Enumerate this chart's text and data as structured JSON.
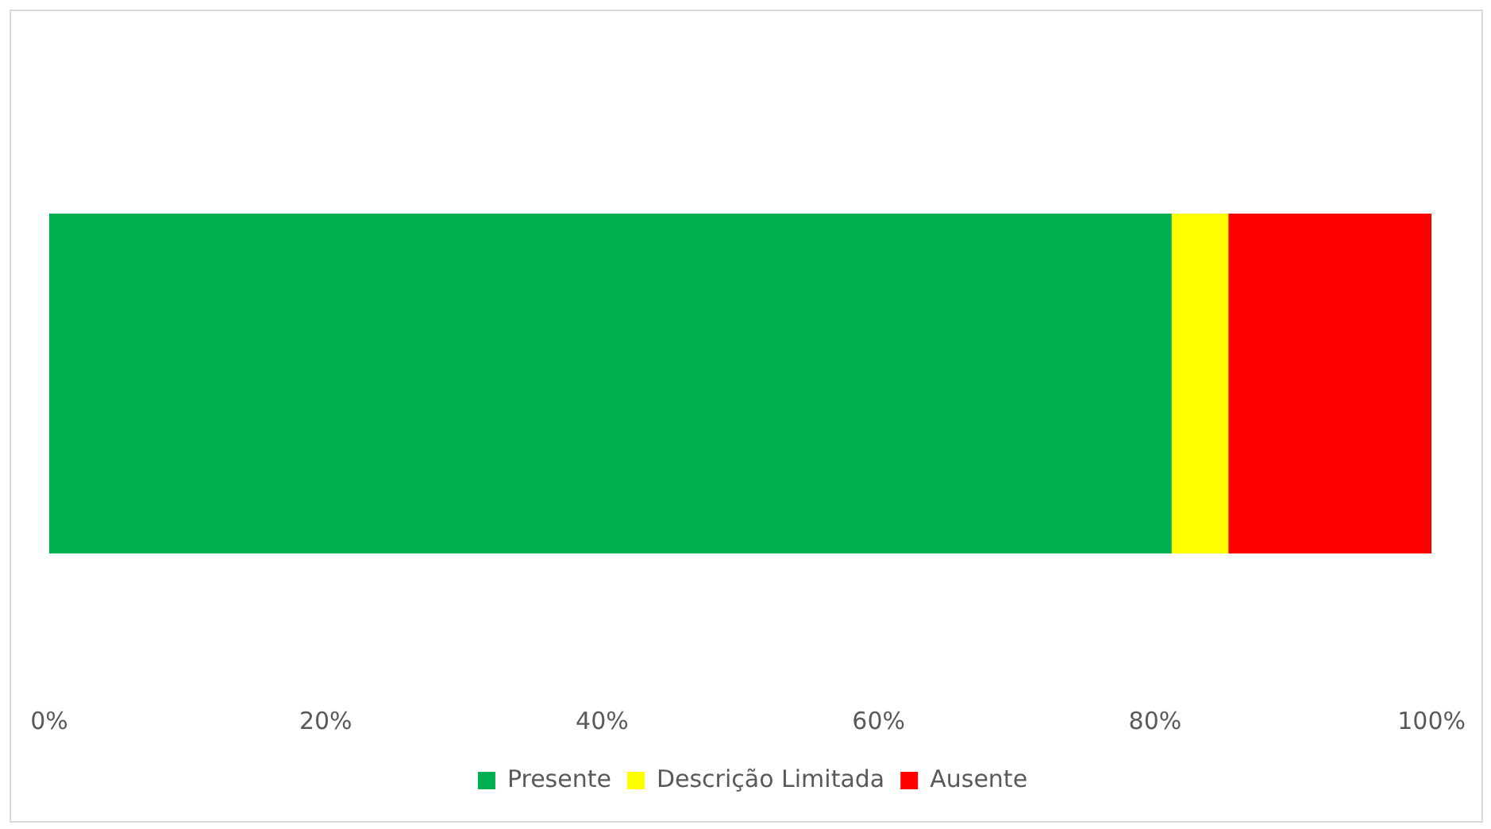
{
  "chart_data": {
    "type": "bar",
    "orientation": "horizontal",
    "stacked": true,
    "categories": [
      null
    ],
    "series": [
      {
        "name": "Presente",
        "color": "#00b050",
        "values": [
          81.2
        ]
      },
      {
        "name": "Descrição Limitada",
        "color": "#ffff00",
        "values": [
          4.1
        ]
      },
      {
        "name": "Ausente",
        "color": "#ff0000",
        "values": [
          14.7
        ]
      }
    ],
    "xlim": [
      0,
      100
    ],
    "xticks": [
      {
        "value": 0,
        "label": "0%"
      },
      {
        "value": 20,
        "label": "20%"
      },
      {
        "value": 40,
        "label": "40%"
      },
      {
        "value": 60,
        "label": "60%"
      },
      {
        "value": 80,
        "label": "80%"
      },
      {
        "value": 100,
        "label": "100%"
      }
    ],
    "grid": false,
    "legend": "bottom",
    "tick_labels": "x"
  }
}
